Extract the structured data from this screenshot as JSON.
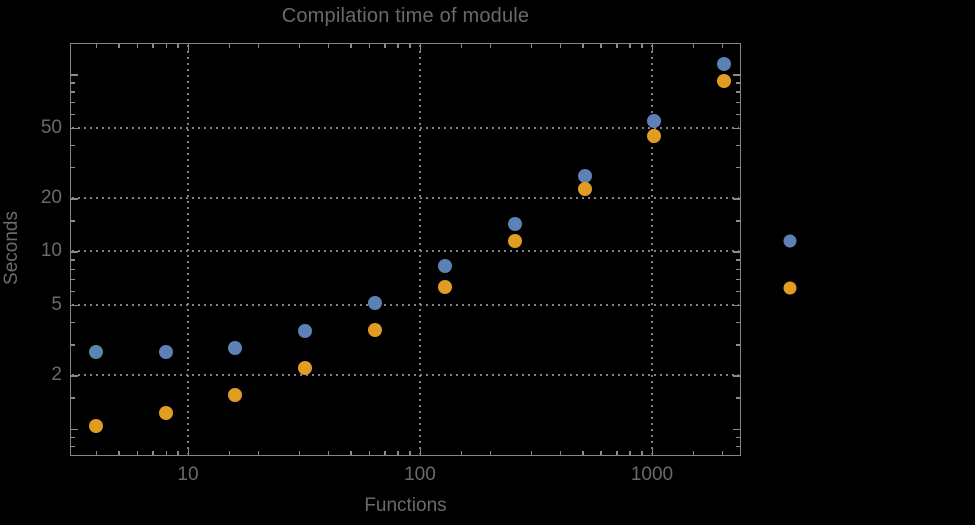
{
  "chart_data": {
    "type": "scatter",
    "title": "Compilation time of module",
    "xlabel": "Functions",
    "ylabel": "Seconds",
    "xscale": "log",
    "yscale": "log",
    "xlim": [
      3.1,
      2420
    ],
    "ylim": [
      0.7,
      150
    ],
    "grid": true,
    "grid_style": "dotted",
    "background": "#000000",
    "frame_color": "#848484",
    "text_color": "#6a6a6a",
    "x": [
      4,
      8,
      16,
      32,
      64,
      128,
      256,
      512,
      1024,
      2048
    ],
    "series": [
      {
        "name": "series-1-blue",
        "color": "#5e81b5",
        "values": [
          2.7,
          2.7,
          2.85,
          3.55,
          5.1,
          8.3,
          14.3,
          26.5,
          54.5,
          114
        ]
      },
      {
        "name": "series-2-orange",
        "color": "#e19c24",
        "values": [
          1.03,
          1.23,
          1.55,
          2.2,
          3.6,
          6.3,
          11.5,
          22.4,
          45,
          92
        ]
      }
    ],
    "x_ticks_major": [
      10,
      100,
      1000
    ],
    "x_tick_labels": [
      "10",
      "100",
      "1000"
    ],
    "x_ticks_minor": [
      4,
      5,
      6,
      7,
      8,
      9,
      15,
      20,
      30,
      40,
      50,
      60,
      70,
      80,
      90,
      150,
      200,
      300,
      400,
      500,
      600,
      700,
      800,
      900,
      1500,
      2000
    ],
    "y_ticks_major": [
      50,
      20,
      10,
      5,
      2
    ],
    "y_tick_labels": [
      "50",
      "20",
      "10",
      "5",
      "2"
    ],
    "y_ticks_unlabeled_major": [
      100,
      1
    ],
    "y_ticks_minor": [
      90,
      80,
      70,
      60,
      40,
      30,
      15,
      9,
      8,
      7,
      6,
      4,
      3,
      1.5,
      0.9,
      0.8
    ],
    "legend_position": "right-outside",
    "legend_markers": [
      {
        "name": "legend-marker-blue",
        "color": "#5e81b5"
      },
      {
        "name": "legend-marker-orange",
        "color": "#e19c24"
      }
    ]
  }
}
